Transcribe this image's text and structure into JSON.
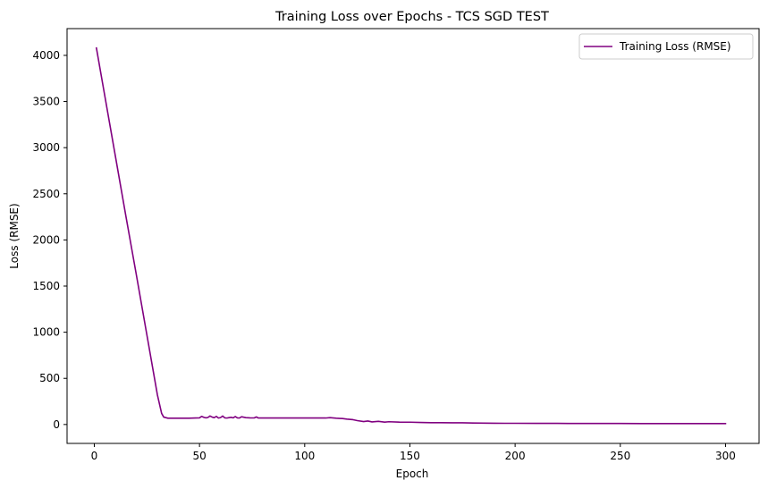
{
  "chart_data": {
    "type": "line",
    "title": "Training Loss over Epochs - TCS SGD TEST",
    "xlabel": "Epoch",
    "ylabel": "Loss (RMSE)",
    "xlim": [
      -12.95,
      315.95
    ],
    "ylim": [
      -205,
      4290
    ],
    "xticks": [
      0,
      50,
      100,
      150,
      200,
      250,
      300
    ],
    "yticks": [
      0,
      500,
      1000,
      1500,
      2000,
      2500,
      3000,
      3500,
      4000
    ],
    "grid": false,
    "legend_position": "top-right",
    "series": [
      {
        "name": "Training Loss (RMSE)",
        "color": "#800080",
        "x": [
          1,
          5,
          10,
          15,
          20,
          25,
          30,
          32,
          33,
          35,
          40,
          45,
          48,
          50,
          51,
          52,
          53,
          54,
          55,
          56,
          57,
          58,
          59,
          60,
          61,
          62,
          63,
          64,
          65,
          66,
          67,
          68,
          69,
          70,
          72,
          74,
          76,
          77,
          78,
          80,
          85,
          90,
          95,
          100,
          105,
          110,
          112,
          115,
          118,
          120,
          123,
          125,
          128,
          130,
          132,
          135,
          138,
          140,
          145,
          150,
          155,
          160,
          165,
          170,
          175,
          180,
          185,
          190,
          195,
          200,
          210,
          220,
          230,
          240,
          250,
          260,
          270,
          280,
          290,
          300
        ],
        "y": [
          4080,
          3560,
          2910,
          2260,
          1620,
          970,
          320,
          120,
          80,
          68,
          68,
          68,
          70,
          72,
          88,
          78,
          72,
          76,
          92,
          80,
          74,
          88,
          70,
          75,
          92,
          72,
          70,
          74,
          78,
          72,
          86,
          72,
          70,
          84,
          74,
          72,
          71,
          82,
          70,
          70,
          70,
          70,
          70,
          70,
          70,
          70,
          74,
          68,
          64,
          58,
          52,
          42,
          32,
          38,
          28,
          34,
          26,
          30,
          26,
          25,
          22,
          20,
          20,
          18,
          18,
          16,
          15,
          14,
          13,
          13,
          12,
          12,
          11,
          11,
          11,
          10,
          10,
          10,
          10,
          10
        ]
      }
    ]
  }
}
